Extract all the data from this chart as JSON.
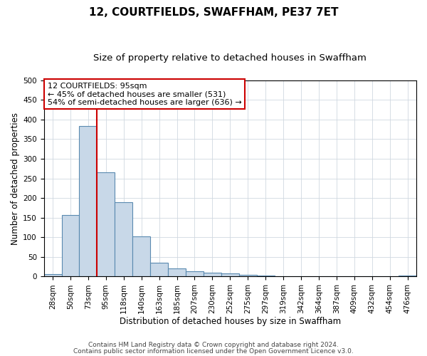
{
  "title": "12, COURTFIELDS, SWAFFHAM, PE37 7ET",
  "subtitle": "Size of property relative to detached houses in Swaffham",
  "xlabel": "Distribution of detached houses by size in Swaffham",
  "ylabel": "Number of detached properties",
  "footer_line1": "Contains HM Land Registry data © Crown copyright and database right 2024.",
  "footer_line2": "Contains public sector information licensed under the Open Government Licence v3.0.",
  "bin_labels": [
    "28sqm",
    "50sqm",
    "73sqm",
    "95sqm",
    "118sqm",
    "140sqm",
    "163sqm",
    "185sqm",
    "207sqm",
    "230sqm",
    "252sqm",
    "275sqm",
    "297sqm",
    "319sqm",
    "342sqm",
    "364sqm",
    "387sqm",
    "409sqm",
    "432sqm",
    "454sqm",
    "476sqm"
  ],
  "bar_values": [
    7,
    157,
    383,
    265,
    190,
    102,
    36,
    21,
    13,
    10,
    8,
    5,
    2,
    0,
    0,
    0,
    0,
    0,
    0,
    0,
    2
  ],
  "bar_color": "#c8d8e8",
  "bar_edgecolor": "#5a8ab0",
  "bar_linewidth": 0.8,
  "vline_x": 3,
  "vline_color": "#cc0000",
  "vline_linewidth": 1.5,
  "annotation_line1": "12 COURTFIELDS: 95sqm",
  "annotation_line2": "← 45% of detached houses are smaller (531)",
  "annotation_line3": "54% of semi-detached houses are larger (636) →",
  "annotation_box_color": "#cc0000",
  "ylim": [
    0,
    500
  ],
  "yticks": [
    0,
    50,
    100,
    150,
    200,
    250,
    300,
    350,
    400,
    450,
    500
  ],
  "background_color": "#ffffff",
  "grid_color": "#d0d8e0",
  "title_fontsize": 11,
  "subtitle_fontsize": 9.5,
  "axis_label_fontsize": 8.5,
  "tick_fontsize": 7.5,
  "annotation_fontsize": 8,
  "footer_fontsize": 6.5
}
